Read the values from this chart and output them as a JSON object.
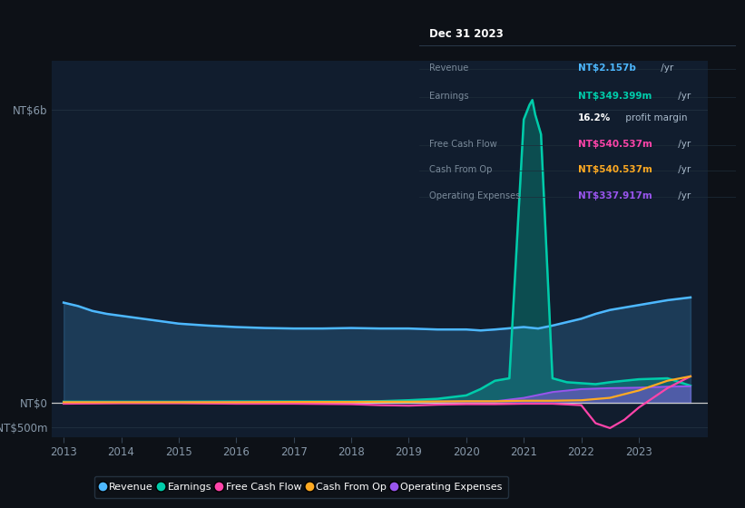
{
  "background_color": "#0d1117",
  "plot_bg_color": "#111d2e",
  "ylabel_top": "NT$6b",
  "ylabel_zero": "NT$0",
  "ylabel_neg": "-NT$500m",
  "y_min": -700000000,
  "y_max": 7000000000,
  "colors": {
    "revenue": "#4db8ff",
    "earnings": "#00ccaa",
    "free_cash_flow": "#ff44aa",
    "cash_from_op": "#ffaa22",
    "operating_expenses": "#9955ee"
  },
  "xtick_years": [
    2013,
    2014,
    2015,
    2016,
    2017,
    2018,
    2019,
    2020,
    2021,
    2022,
    2023
  ],
  "info_box_title": "Dec 31 2023",
  "info_rows": [
    {
      "label": "Revenue",
      "value": "NT$2.157b",
      "suffix": " /yr",
      "color": "#4db8ff"
    },
    {
      "label": "Earnings",
      "value": "NT$349.399m",
      "suffix": " /yr",
      "color": "#00ccaa"
    },
    {
      "label": "",
      "value": "16.2%",
      "suffix": " profit margin",
      "color": "#ffffff"
    },
    {
      "label": "Free Cash Flow",
      "value": "NT$540.537m",
      "suffix": " /yr",
      "color": "#ff44aa"
    },
    {
      "label": "Cash From Op",
      "value": "NT$540.537m",
      "suffix": " /yr",
      "color": "#ffaa22"
    },
    {
      "label": "Operating Expenses",
      "value": "NT$337.917m",
      "suffix": " /yr",
      "color": "#9955ee"
    }
  ],
  "legend": [
    "Revenue",
    "Earnings",
    "Free Cash Flow",
    "Cash From Op",
    "Operating Expenses"
  ],
  "revenue_x": [
    2013.0,
    2013.25,
    2013.5,
    2013.75,
    2014.0,
    2014.5,
    2015.0,
    2015.5,
    2016.0,
    2016.5,
    2017.0,
    2017.5,
    2018.0,
    2018.5,
    2019.0,
    2019.5,
    2020.0,
    2020.25,
    2020.5,
    2021.0,
    2021.25,
    2021.5,
    2022.0,
    2022.25,
    2022.5,
    2022.75,
    2023.0,
    2023.5,
    2023.9
  ],
  "revenue_y": [
    2.05,
    1.98,
    1.88,
    1.82,
    1.78,
    1.7,
    1.62,
    1.58,
    1.55,
    1.53,
    1.52,
    1.52,
    1.53,
    1.52,
    1.52,
    1.5,
    1.5,
    1.48,
    1.5,
    1.55,
    1.52,
    1.58,
    1.72,
    1.82,
    1.9,
    1.95,
    2.0,
    2.1,
    2.157
  ],
  "earnings_x": [
    2013.0,
    2014.0,
    2015.0,
    2016.0,
    2017.0,
    2018.0,
    2018.5,
    2019.0,
    2019.5,
    2020.0,
    2020.25,
    2020.5,
    2020.75,
    2021.0,
    2021.1,
    2021.15,
    2021.2,
    2021.3,
    2021.5,
    2021.75,
    2022.0,
    2022.25,
    2022.5,
    2022.75,
    2023.0,
    2023.5,
    2023.9
  ],
  "earnings_y": [
    0.02,
    0.02,
    0.02,
    0.025,
    0.025,
    0.025,
    0.03,
    0.05,
    0.08,
    0.15,
    0.28,
    0.45,
    0.5,
    5.8,
    6.1,
    6.2,
    5.9,
    5.5,
    0.5,
    0.42,
    0.4,
    0.38,
    0.42,
    0.45,
    0.48,
    0.5,
    0.349
  ],
  "fcf_x": [
    2013.0,
    2014.0,
    2015.0,
    2016.0,
    2017.0,
    2018.0,
    2018.5,
    2019.0,
    2019.5,
    2020.0,
    2020.5,
    2021.0,
    2021.5,
    2022.0,
    2022.25,
    2022.5,
    2022.75,
    2023.0,
    2023.5,
    2023.9
  ],
  "fcf_y": [
    -0.02,
    -0.01,
    -0.01,
    -0.02,
    -0.02,
    -0.03,
    -0.05,
    -0.06,
    -0.04,
    -0.03,
    -0.03,
    -0.02,
    -0.02,
    -0.05,
    -0.42,
    -0.52,
    -0.35,
    -0.1,
    0.3,
    0.54
  ],
  "cop_x": [
    2013.0,
    2014.0,
    2015.0,
    2016.0,
    2017.0,
    2018.0,
    2018.5,
    2019.0,
    2019.5,
    2020.0,
    2020.5,
    2021.0,
    2021.5,
    2022.0,
    2022.5,
    2023.0,
    2023.5,
    2023.9
  ],
  "cop_y": [
    0.01,
    0.01,
    0.01,
    0.01,
    0.015,
    0.015,
    0.02,
    0.02,
    0.025,
    0.03,
    0.03,
    0.04,
    0.04,
    0.05,
    0.1,
    0.25,
    0.45,
    0.54
  ],
  "opex_x": [
    2013.0,
    2014.0,
    2015.0,
    2016.0,
    2017.0,
    2018.0,
    2018.5,
    2019.0,
    2019.5,
    2020.0,
    2020.5,
    2021.0,
    2021.5,
    2022.0,
    2022.5,
    2023.0,
    2023.5,
    2023.9
  ],
  "opex_y": [
    0.005,
    0.01,
    0.01,
    0.015,
    0.015,
    0.02,
    0.02,
    0.02,
    0.025,
    0.03,
    0.03,
    0.1,
    0.22,
    0.28,
    0.3,
    0.31,
    0.33,
    0.3379
  ]
}
